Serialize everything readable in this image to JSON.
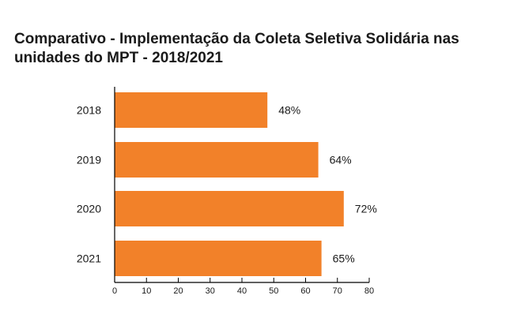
{
  "chart_data": {
    "type": "bar",
    "orientation": "horizontal",
    "title": "Comparativo - Implementação da Coleta Seletiva Solidária nas unidades do MPT - 2018/2021",
    "title_lines": [
      "Comparativo - Implementação da Coleta Seletiva Solidária nas",
      "unidades do MPT - 2018/2021"
    ],
    "categories": [
      "2018",
      "2019",
      "2020",
      "2021"
    ],
    "values": [
      48,
      64,
      72,
      65
    ],
    "data_labels": [
      "48%",
      "64%",
      "72%",
      "65%"
    ],
    "xlim": [
      0,
      80
    ],
    "xticks": [
      "0",
      "10",
      "20",
      "30",
      "40",
      "50",
      "60",
      "70",
      "80"
    ],
    "xlabel": "",
    "ylabel": "",
    "grid": false,
    "bar_color": "#F28129"
  }
}
